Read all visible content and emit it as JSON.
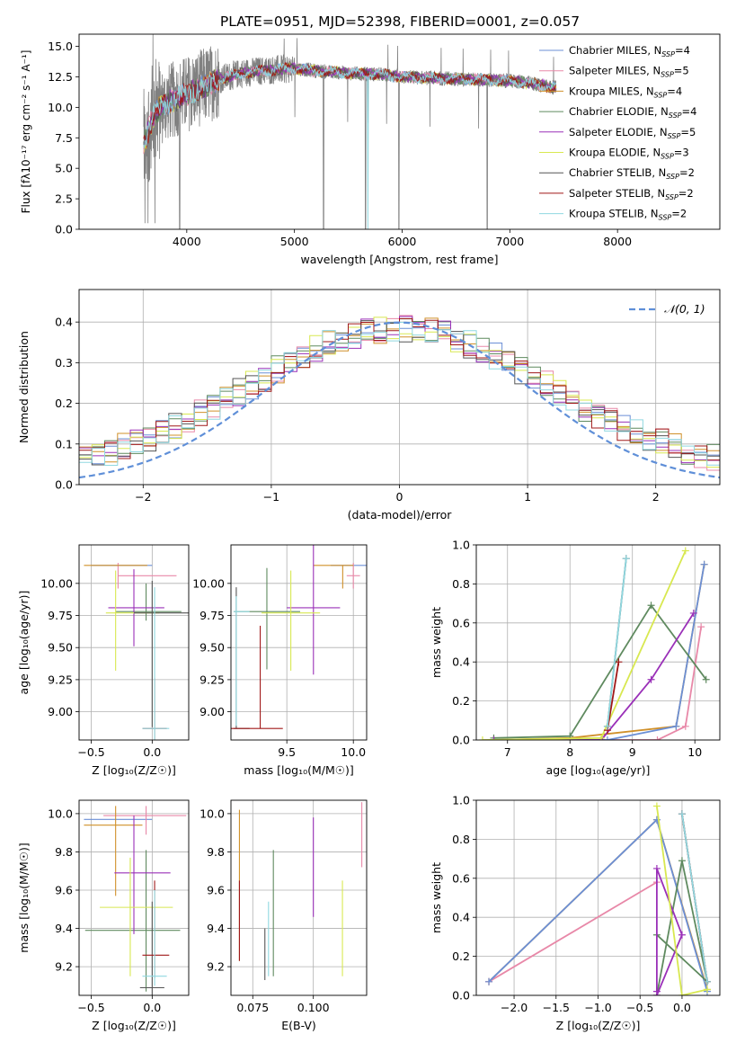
{
  "figure_title": "PLATE=0951, MJD=52398, FIBERID=0001, z=0.057",
  "model_colors": [
    "#6b8fd6",
    "#e888a8",
    "#d0902a",
    "#5f8a5f",
    "#9a30b8",
    "#d8e850",
    "#555555",
    "#a01818",
    "#90d8e0"
  ],
  "model_labels": [
    "Chabrier MILES, N",
    "Salpeter MILES, N",
    "Kroupa MILES, N",
    "Chabrier ELODIE, N",
    "Salpeter ELODIE, N",
    "Kroupa ELODIE, N",
    "Chabrier STELIB, N",
    "Salpeter STELIB, N",
    "Kroupa STELIB, N"
  ],
  "model_nssp": [
    "4",
    "5",
    "4",
    "4",
    "5",
    "3",
    "2",
    "2",
    "2"
  ],
  "nssp_sub": "SSP",
  "chart_data": [
    {
      "id": "spectrum",
      "type": "line",
      "title": "PLATE=0951, MJD=52398, FIBERID=0001, z=0.057",
      "xlabel": "wavelength [Angstrom, rest frame]",
      "ylabel": "Flux [fλ10⁻¹⁷ erg cm⁻² s⁻¹ A⁻¹]",
      "xlim": [
        3000,
        8950
      ],
      "ylim": [
        0,
        16
      ],
      "xticks": [
        "4000",
        "5000",
        "6000",
        "7000",
        "8000"
      ],
      "yticks": [
        "0.0",
        "2.5",
        "5.0",
        "7.5",
        "10.0",
        "12.5",
        "15.0"
      ],
      "data_range": [
        3600,
        7430
      ],
      "continuum": [
        [
          3600,
          7.0
        ],
        [
          3700,
          9.5
        ],
        [
          3800,
          10.3
        ],
        [
          3950,
          10.9
        ],
        [
          4100,
          11.5
        ],
        [
          4300,
          12.3
        ],
        [
          4500,
          12.8
        ],
        [
          4700,
          13.0
        ],
        [
          5000,
          13.2
        ],
        [
          5200,
          13.0
        ],
        [
          5500,
          12.8
        ],
        [
          5800,
          12.7
        ],
        [
          6000,
          12.5
        ],
        [
          6300,
          12.4
        ],
        [
          6600,
          12.3
        ],
        [
          6900,
          12.2
        ],
        [
          7100,
          12.1
        ],
        [
          7300,
          11.8
        ],
        [
          7430,
          11.6
        ]
      ],
      "absorption_dips": [
        [
          3934,
          0
        ],
        [
          5270,
          0
        ],
        [
          5660,
          0
        ],
        [
          5970,
          0
        ],
        [
          6790,
          0
        ]
      ],
      "legend_loc": "upper right",
      "grid": false
    },
    {
      "id": "residuals",
      "type": "step",
      "xlabel": "(data-model)/error",
      "ylabel": "Normed distribution",
      "xlim": [
        -2.5,
        2.5
      ],
      "ylim": [
        0,
        0.48
      ],
      "xticks": [
        "−2",
        "−1",
        "0",
        "1",
        "2"
      ],
      "yticks": [
        "0.0",
        "0.1",
        "0.2",
        "0.3",
        "0.4"
      ],
      "bin_edges": [
        -2.5,
        2.5
      ],
      "nbins": 50,
      "gaussian_label": "𝒩(0, 1)",
      "legend_loc": "upper right",
      "grid": true
    },
    {
      "id": "age_vs_Z",
      "type": "errorbar",
      "xlabel": "Z [log₁₀(Z/Z☉)]",
      "ylabel": "age  [log₁₀(age/yr)]",
      "xlim": [
        -0.6,
        0.3
      ],
      "ylim": [
        8.78,
        10.3
      ],
      "xticks": [
        "−0.5",
        "0.0"
      ],
      "yticks": [
        "9.00",
        "9.25",
        "9.50",
        "9.75",
        "10.00"
      ],
      "points": [
        {
          "x": -0.16,
          "y": 10.14,
          "xerr": [
            0.34,
            0.16
          ],
          "yerr": [
            0,
            0
          ],
          "c": 0
        },
        {
          "x": -0.28,
          "y": 10.06,
          "xerr": [
            0,
            0.48
          ],
          "yerr": [
            0.1,
            0.1
          ],
          "c": 1
        },
        {
          "x": -0.26,
          "y": 10.14,
          "xerr": [
            0.3,
            0.22
          ],
          "yerr": [
            0,
            0
          ],
          "c": 2
        },
        {
          "x": -0.05,
          "y": 9.78,
          "xerr": [
            0.25,
            0.29
          ],
          "yerr": [
            0.07,
            0.22
          ],
          "c": 3
        },
        {
          "x": -0.15,
          "y": 9.81,
          "xerr": [
            0.21,
            0.25
          ],
          "yerr": [
            0.3,
            0.3
          ],
          "c": 4
        },
        {
          "x": -0.3,
          "y": 9.77,
          "xerr": [
            0.08,
            0.36
          ],
          "yerr": [
            0.45,
            0.33
          ],
          "c": 5
        },
        {
          "x": 0.0,
          "y": 9.77,
          "xerr": [
            0.15,
            0.33
          ],
          "yerr": [
            0.89,
            0.25
          ],
          "c": 6
        },
        {
          "x": 0.02,
          "y": 8.87,
          "xerr": [
            0.1,
            0.1
          ],
          "yerr": [
            0.09,
            0.39
          ],
          "c": 7
        },
        {
          "x": 0.02,
          "y": 8.87,
          "xerr": [
            0.1,
            0.12
          ],
          "yerr": [
            0.09,
            1.1
          ],
          "c": 8
        }
      ],
      "grid": true
    },
    {
      "id": "age_vs_mass",
      "type": "errorbar",
      "xlabel": "mass [log₁₀(M/M☉)]",
      "ylabel": "",
      "xlim": [
        9.08,
        10.1
      ],
      "ylim": [
        8.78,
        10.3
      ],
      "xticks": [
        "9.5",
        "10.0"
      ],
      "yticks": [
        "9.00",
        "9.25",
        "9.50",
        "9.75",
        "10.00"
      ],
      "points": [
        {
          "x": 9.98,
          "y": 10.14,
          "xerr": [
            0.15,
            0.12
          ],
          "yerr": [
            0,
            0
          ],
          "c": 0
        },
        {
          "x": 10.0,
          "y": 10.06,
          "xerr": [
            0.05,
            0.05
          ],
          "yerr": [
            0.1,
            0.1
          ],
          "c": 1
        },
        {
          "x": 9.92,
          "y": 10.14,
          "xerr": [
            0.22,
            0.08
          ],
          "yerr": [
            0.18,
            0
          ],
          "c": 2
        },
        {
          "x": 9.35,
          "y": 9.78,
          "xerr": [
            0.25,
            0.25
          ],
          "yerr": [
            0.45,
            0.34
          ],
          "c": 3
        },
        {
          "x": 9.7,
          "y": 9.81,
          "xerr": [
            0.2,
            0.2
          ],
          "yerr": [
            0.52,
            0.52
          ],
          "c": 4
        },
        {
          "x": 9.53,
          "y": 9.77,
          "xerr": [
            0.22,
            0.22
          ],
          "yerr": [
            0.45,
            0.33
          ],
          "c": 5
        },
        {
          "x": 9.12,
          "y": 8.87,
          "xerr": [
            0.02,
            0.1
          ],
          "yerr": [
            0,
            1.1
          ],
          "c": 6
        },
        {
          "x": 9.3,
          "y": 8.87,
          "xerr": [
            0.22,
            0.17
          ],
          "yerr": [
            0,
            0.8
          ],
          "c": 7
        },
        {
          "x": 9.12,
          "y": 9.78,
          "xerr": [
            0.02,
            0.1
          ],
          "yerr": [
            0.89,
            0.12
          ],
          "c": 8
        }
      ],
      "grid": true
    },
    {
      "id": "weight_vs_age",
      "type": "line",
      "xlabel": "age  [log₁₀(age/yr)]",
      "ylabel": "mass weight",
      "xlim": [
        6.5,
        10.4
      ],
      "ylim": [
        0,
        1.0
      ],
      "xticks": [
        "7",
        "8",
        "9",
        "10"
      ],
      "yticks": [
        "0.0",
        "0.2",
        "0.4",
        "0.6",
        "0.8",
        "1.0"
      ],
      "series": [
        {
          "c": 2,
          "x": [
            6.78,
            8.0,
            9.7,
            10.15
          ],
          "y": [
            0.0,
            0.01,
            0.07,
            0.9
          ]
        },
        {
          "c": 1,
          "x": [
            6.78,
            9.4,
            9.85,
            10.1
          ],
          "y": [
            0.0,
            0.0,
            0.07,
            0.58
          ]
        },
        {
          "c": 0,
          "x": [
            6.78,
            8.6,
            9.7,
            10.15
          ],
          "y": [
            0.0,
            0.0,
            0.07,
            0.9
          ]
        },
        {
          "c": 3,
          "x": [
            6.78,
            8.0,
            9.3,
            10.18
          ],
          "y": [
            0.01,
            0.02,
            0.69,
            0.31
          ]
        },
        {
          "c": 4,
          "x": [
            6.78,
            8.5,
            9.3,
            9.98
          ],
          "y": [
            0.0,
            0.0,
            0.31,
            0.65
          ]
        },
        {
          "c": 5,
          "x": [
            6.6,
            8.5,
            9.85
          ],
          "y": [
            0.0,
            0.01,
            0.97
          ]
        },
        {
          "c": 6,
          "x": [
            8.6,
            8.9
          ],
          "y": [
            0.07,
            0.93
          ]
        },
        {
          "c": 7,
          "x": [
            8.6,
            8.78
          ],
          "y": [
            0.05,
            0.4
          ]
        },
        {
          "c": 8,
          "x": [
            8.6,
            8.9
          ],
          "y": [
            0.07,
            0.93
          ]
        }
      ],
      "grid": true
    },
    {
      "id": "mass_vs_Z",
      "type": "errorbar",
      "xlabel": "Z [log₁₀(Z/Z☉)]",
      "ylabel": "mass [log₁₀(M/M☉)]",
      "xlim": [
        -0.6,
        0.3
      ],
      "ylim": [
        9.05,
        10.07
      ],
      "xticks": [
        "−0.5",
        "0.0"
      ],
      "yticks": [
        "9.2",
        "9.4",
        "9.6",
        "9.8",
        "10.0"
      ],
      "points": [
        {
          "x": -0.15,
          "y": 9.97,
          "xerr": [
            0.41,
            0.15
          ],
          "yerr": [
            0,
            0
          ],
          "c": 0
        },
        {
          "x": -0.05,
          "y": 9.99,
          "xerr": [
            0.35,
            0.33
          ],
          "yerr": [
            0.1,
            0.05
          ],
          "c": 1
        },
        {
          "x": -0.3,
          "y": 9.94,
          "xerr": [
            0.26,
            0.22
          ],
          "yerr": [
            0.37,
            0.1
          ],
          "c": 2
        },
        {
          "x": -0.05,
          "y": 9.39,
          "xerr": [
            0.5,
            0.28
          ],
          "yerr": [
            0.32,
            0.42
          ],
          "c": 3
        },
        {
          "x": -0.15,
          "y": 9.69,
          "xerr": [
            0.16,
            0.3
          ],
          "yerr": [
            0.32,
            0.3
          ],
          "c": 4
        },
        {
          "x": -0.18,
          "y": 9.51,
          "xerr": [
            0.25,
            0.35
          ],
          "yerr": [
            0.36,
            0.26
          ],
          "c": 5
        },
        {
          "x": 0.0,
          "y": 9.09,
          "xerr": [
            0.1,
            0.1
          ],
          "yerr": [
            0.05,
            0.45
          ],
          "c": 6
        },
        {
          "x": 0.02,
          "y": 9.26,
          "xerr": [
            0.1,
            0.12
          ],
          "yerr": [
            0.12,
            0.39
          ],
          "c": 7
        },
        {
          "x": 0.02,
          "y": 9.15,
          "xerr": [
            0.1,
            0.1
          ],
          "yerr": [
            0.05,
            0.45
          ],
          "c": 8
        }
      ],
      "grid": true
    },
    {
      "id": "mass_vs_ebv",
      "type": "errorbar",
      "xlabel": "E(B-V)",
      "ylabel": "",
      "xlim": [
        0.066,
        0.122
      ],
      "ylim": [
        9.05,
        10.07
      ],
      "xticks": [
        "0.075",
        "0.100"
      ],
      "yticks": [
        "9.2",
        "9.4",
        "9.6",
        "9.8",
        "10.0"
      ],
      "points": [
        {
          "x": 0.0695,
          "y": 9.65,
          "yerr": [
            0.42,
            0.37
          ],
          "c": 2
        },
        {
          "x": 0.0695,
          "y": 9.45,
          "yerr": [
            0.22,
            0.2
          ],
          "c": 7
        },
        {
          "x": 0.0815,
          "y": 9.31,
          "yerr": [
            0.16,
            0.23
          ],
          "c": 8
        },
        {
          "x": 0.0835,
          "y": 9.45,
          "yerr": [
            0.3,
            0.36
          ],
          "c": 3
        },
        {
          "x": 0.08,
          "y": 9.3,
          "yerr": [
            0.17,
            0.1
          ],
          "c": 6
        },
        {
          "x": 0.1,
          "y": 9.72,
          "yerr": [
            0.26,
            0.26
          ],
          "c": 4
        },
        {
          "x": 0.112,
          "y": 9.4,
          "yerr": [
            0.25,
            0.25
          ],
          "c": 5
        },
        {
          "x": 0.12,
          "y": 9.89,
          "yerr": [
            0.17,
            0.17
          ],
          "c": 1
        }
      ],
      "grid": true
    },
    {
      "id": "weight_vs_Z",
      "type": "line",
      "xlabel": "Z [log₁₀(Z/Z☉)]",
      "ylabel": "mass weight",
      "xlim": [
        -2.45,
        0.45
      ],
      "ylim": [
        0,
        1.0
      ],
      "xticks": [
        "−2.0",
        "−1.5",
        "−1.0",
        "−0.5",
        "0.0"
      ],
      "yticks": [
        "0.0",
        "0.2",
        "0.4",
        "0.6",
        "0.8",
        "1.0"
      ],
      "series": [
        {
          "c": 2,
          "x": [
            -2.3,
            -0.3,
            0.3
          ],
          "y": [
            0.07,
            0.9,
            0.03
          ]
        },
        {
          "c": 1,
          "x": [
            -2.3,
            -0.3
          ],
          "y": [
            0.07,
            0.58
          ]
        },
        {
          "c": 0,
          "x": [
            -2.3,
            -0.3,
            0.3
          ],
          "y": [
            0.07,
            0.9,
            0.02
          ]
        },
        {
          "c": 3,
          "x": [
            -0.3,
            0.0,
            0.3,
            -0.3
          ],
          "y": [
            0.0,
            0.69,
            0.07,
            0.31
          ]
        },
        {
          "c": 4,
          "x": [
            -0.3,
            0.0,
            -0.3,
            -0.3
          ],
          "y": [
            0.0,
            0.31,
            0.65,
            0.02
          ]
        },
        {
          "c": 5,
          "x": [
            -0.3,
            0.0,
            0.3
          ],
          "y": [
            0.97,
            0.0,
            0.03
          ]
        },
        {
          "c": 6,
          "x": [
            0.0,
            0.3
          ],
          "y": [
            0.93,
            0.07
          ]
        },
        {
          "c": 7,
          "x": [
            0.0,
            0.3
          ],
          "y": [
            0.93,
            0.07
          ]
        },
        {
          "c": 8,
          "x": [
            0.0,
            0.3
          ],
          "y": [
            0.93,
            0.07
          ]
        }
      ],
      "grid": true
    }
  ]
}
